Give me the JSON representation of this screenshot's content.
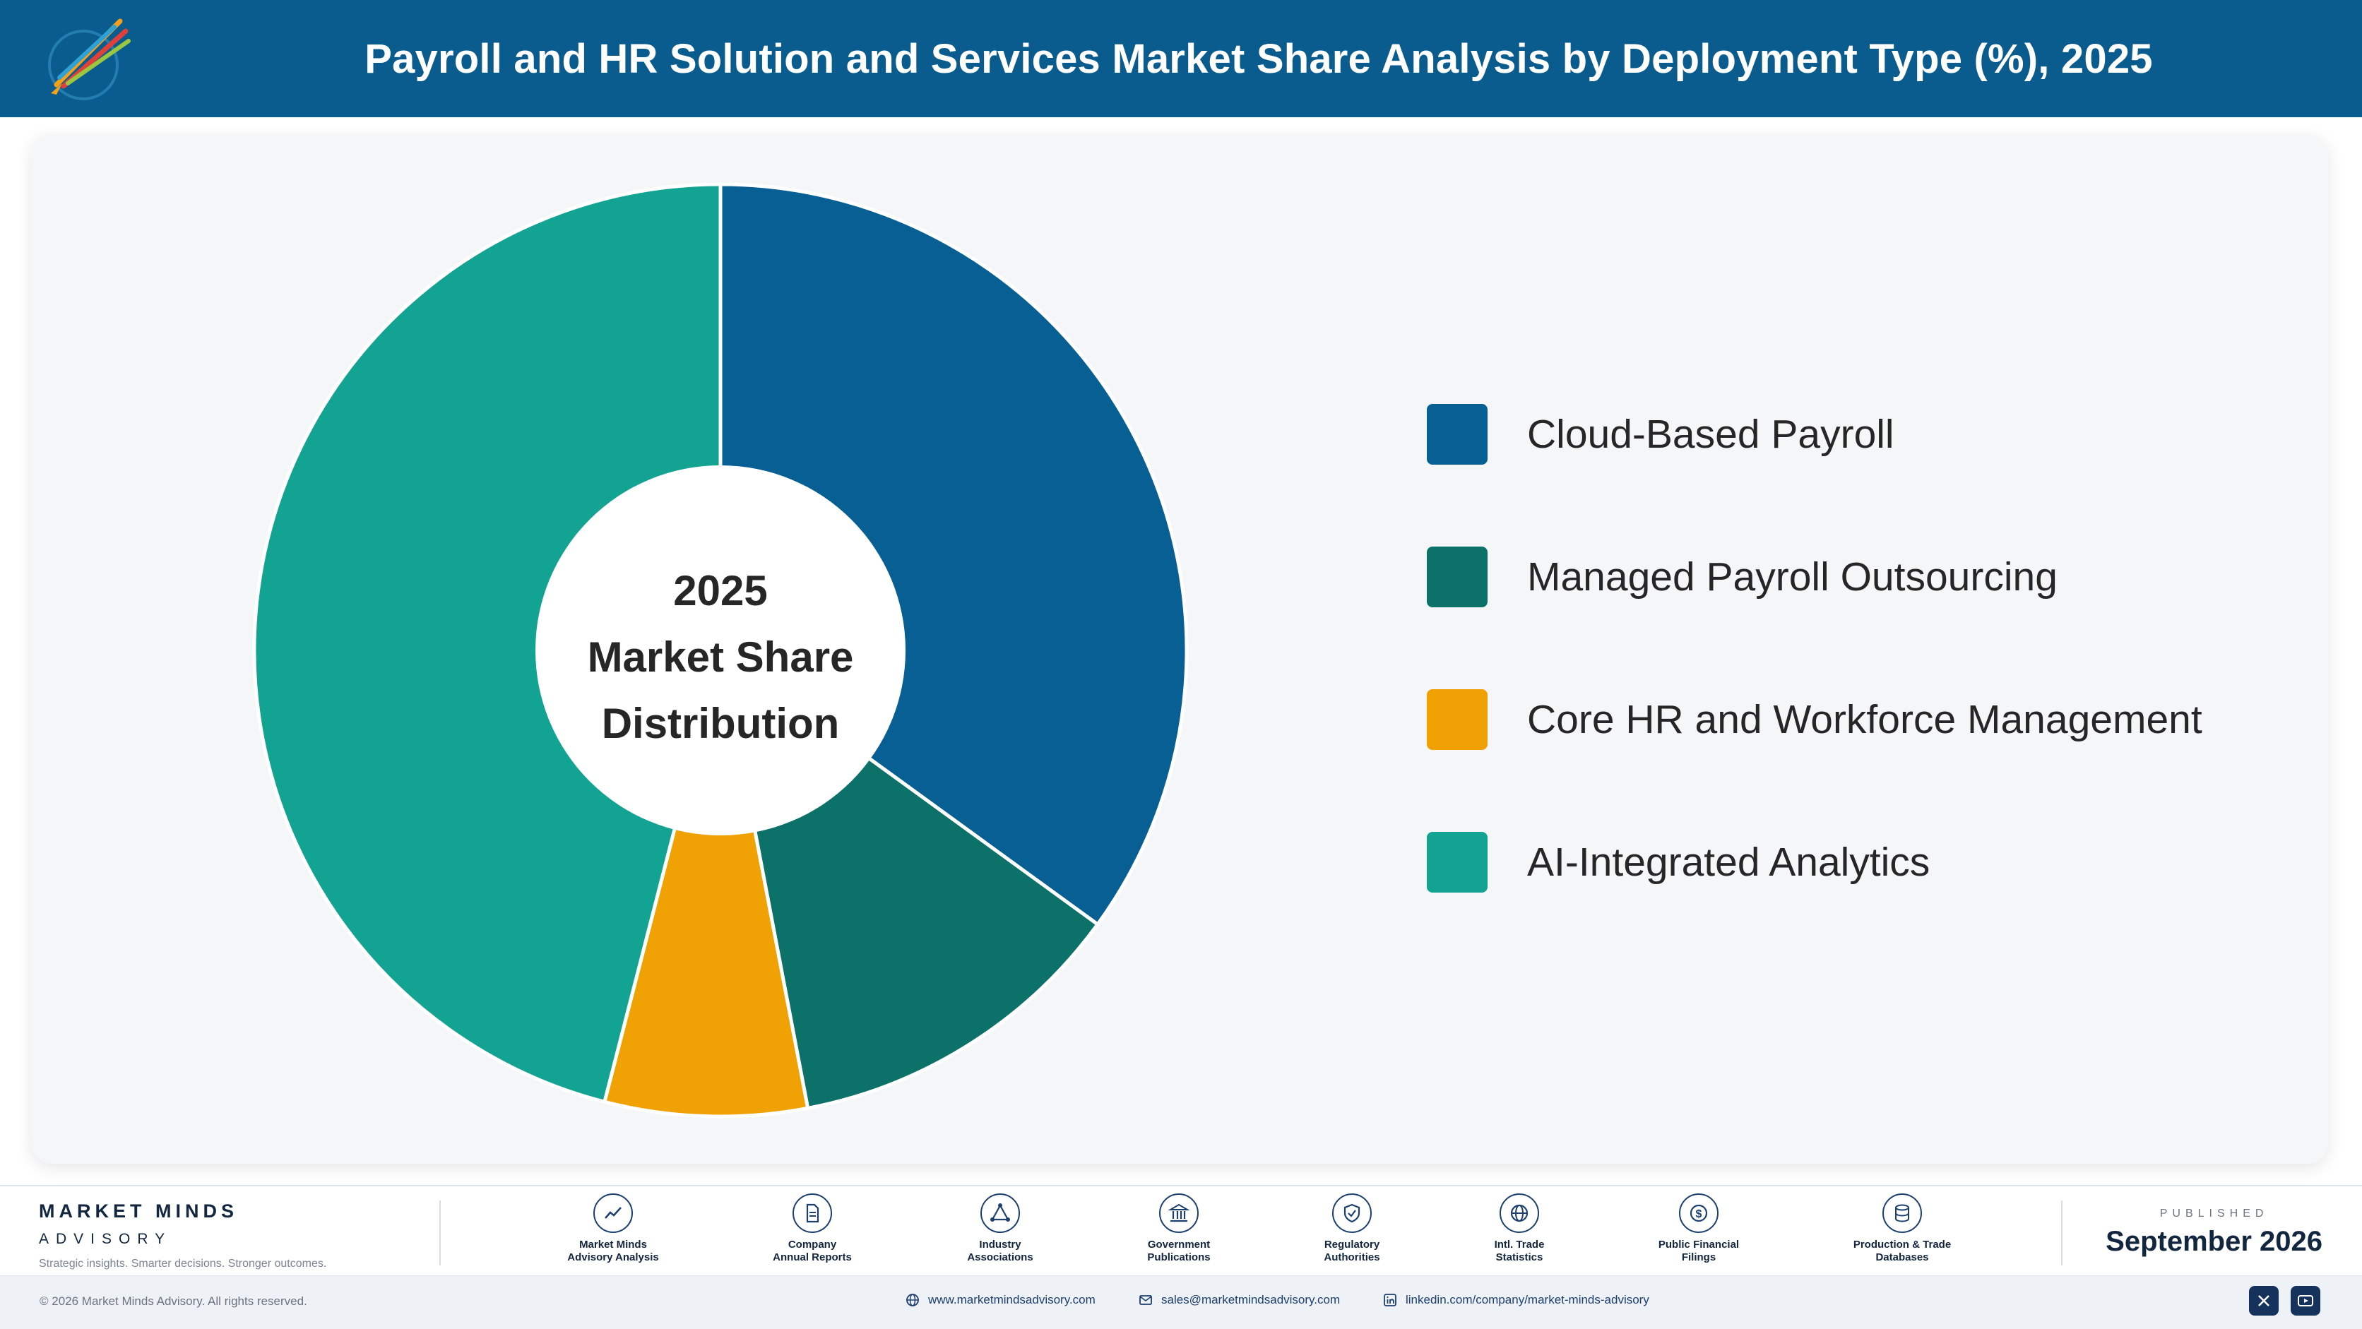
{
  "header": {
    "title": "Payroll and HR Solution and Services Market Share Analysis by Deployment Type (%), 2025"
  },
  "chart_data": {
    "type": "pie",
    "title": "Payroll and HR Solution and Services Market Share Analysis by Deployment Type (%), 2025",
    "center_label": [
      "2025",
      "Market Share",
      "Distribution"
    ],
    "categories": [
      "Cloud-Based Payroll",
      "Managed Payroll Outsourcing",
      "Core HR and Workforce Management",
      "AI-Integrated Analytics"
    ],
    "values": [
      35,
      12,
      7,
      46
    ],
    "colors": [
      "#075f94",
      "#0c7168",
      "#f0a205",
      "#12a393"
    ],
    "legend_position": "right"
  },
  "footer": {
    "brand_name": "MARKET MINDS",
    "brand_sub": "ADVISORY",
    "brand_tagline": "Strategic insights. Smarter decisions. Stronger outcomes.",
    "sources": [
      {
        "line1": "Market Minds",
        "line2": "Advisory Analysis",
        "icon": "trend-icon"
      },
      {
        "line1": "Company",
        "line2": "Annual Reports",
        "icon": "document-icon"
      },
      {
        "line1": "Industry",
        "line2": "Associations",
        "icon": "network-icon"
      },
      {
        "line1": "Government",
        "line2": "Publications",
        "icon": "building-icon"
      },
      {
        "line1": "Regulatory",
        "line2": "Authorities",
        "icon": "shield-icon"
      },
      {
        "line1": "Intl. Trade",
        "line2": "Statistics",
        "icon": "globe-icon"
      },
      {
        "line1": "Public Financial",
        "line2": "Filings",
        "icon": "dollar-icon"
      },
      {
        "line1": "Production & Trade",
        "line2": "Databases",
        "icon": "database-icon"
      }
    ],
    "published_label": "PUBLISHED",
    "published_date": "September 2026",
    "copyright": "© 2026 Market Minds Advisory. All rights reserved.",
    "website": "www.marketmindsadvisory.com",
    "email": "sales@marketmindsadvisory.com",
    "linkedin": "linkedin.com/company/market-minds-advisory"
  }
}
